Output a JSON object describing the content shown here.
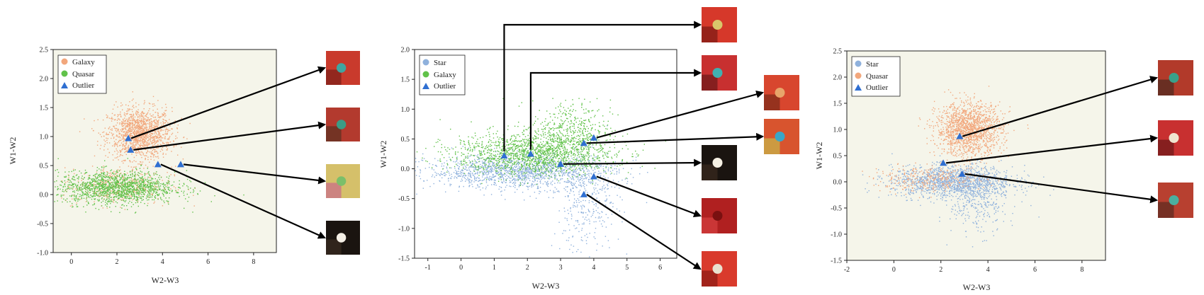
{
  "colors": {
    "Galaxy": "#f2a77c",
    "Quasar": "#f2a77c",
    "Star": "#8fb1dc",
    "GalaxyGreen": "#61c24a",
    "QuasarGreen": "#61c24a",
    "Outlier": "#2f6fd1",
    "plot_bg": "#f5f5ea"
  },
  "chart_data": [
    {
      "type": "scatter",
      "xlabel": "W2-W3",
      "ylabel": "W1-W2",
      "xlim": [
        -0.8,
        9
      ],
      "ylim": [
        -1.0,
        2.5
      ],
      "xticks": [
        0,
        2,
        4,
        6,
        8
      ],
      "yticks": [
        -1.0,
        -0.5,
        0.0,
        0.5,
        1.0,
        1.5,
        2.0,
        2.5
      ],
      "legend": [
        "Galaxy",
        "Quasar",
        "Outlier"
      ],
      "legend_colors": [
        "#f2a77c",
        "#61c24a",
        "#2f6fd1"
      ],
      "clusters": [
        {
          "series": "Galaxy",
          "color": "#f2a77c",
          "cx": 3.0,
          "cy": 1.05,
          "sx": 0.7,
          "sy": 0.22,
          "n": 1400
        },
        {
          "series": "Galaxy",
          "color": "#f2a77c",
          "cx": 2.0,
          "cy": 0.15,
          "sx": 1.2,
          "sy": 0.16,
          "n": 400
        },
        {
          "series": "Quasar",
          "color": "#61c24a",
          "cx": 2.0,
          "cy": 0.12,
          "sx": 1.3,
          "sy": 0.14,
          "n": 1500
        }
      ],
      "outliers": [
        [
          2.5,
          0.97
        ],
        [
          2.6,
          0.77
        ],
        [
          3.8,
          0.52
        ],
        [
          4.8,
          0.52
        ]
      ]
    },
    {
      "type": "scatter",
      "xlabel": "W2-W3",
      "ylabel": "W1-W2",
      "xlim": [
        -1.4,
        6.5
      ],
      "ylim": [
        -1.5,
        2.0
      ],
      "xticks": [
        -1,
        0,
        1,
        2,
        3,
        4,
        5,
        6
      ],
      "yticks": [
        -1.5,
        -1.0,
        -0.5,
        0.0,
        0.5,
        1.0,
        1.5,
        2.0
      ],
      "legend": [
        "Star",
        "Galaxy",
        "Outlier"
      ],
      "legend_colors": [
        "#8fb1dc",
        "#61c24a",
        "#2f6fd1"
      ],
      "clusters": [
        {
          "series": "Star",
          "color": "#8fb1dc",
          "cx": 1.8,
          "cy": -0.05,
          "sx": 1.4,
          "sy": 0.14,
          "n": 1500
        },
        {
          "series": "Star",
          "color": "#8fb1dc",
          "cx": 3.8,
          "cy": -0.6,
          "sx": 0.5,
          "sy": 0.4,
          "n": 300
        },
        {
          "series": "Galaxy",
          "color": "#61c24a",
          "cx": 2.2,
          "cy": 0.25,
          "sx": 1.2,
          "sy": 0.18,
          "n": 1600
        },
        {
          "series": "Galaxy",
          "color": "#61c24a",
          "cx": 3.3,
          "cy": 0.65,
          "sx": 0.6,
          "sy": 0.25,
          "n": 400
        }
      ],
      "outliers": [
        [
          1.3,
          0.22
        ],
        [
          2.1,
          0.25
        ],
        [
          3.0,
          0.08
        ],
        [
          3.7,
          0.43
        ],
        [
          4.0,
          0.52
        ],
        [
          4.0,
          -0.13
        ],
        [
          3.7,
          -0.43
        ]
      ]
    },
    {
      "type": "scatter",
      "xlabel": "W2-W3",
      "ylabel": "W1-W2",
      "xlim": [
        -2,
        9
      ],
      "ylim": [
        -1.5,
        2.5
      ],
      "xticks": [
        -2,
        0,
        2,
        4,
        6,
        8
      ],
      "yticks": [
        -1.5,
        -1.0,
        -0.5,
        0.0,
        0.5,
        1.0,
        1.5,
        2.0,
        2.5
      ],
      "legend": [
        "Star",
        "Quasar",
        "Outlier"
      ],
      "legend_colors": [
        "#8fb1dc",
        "#f2a77c",
        "#2f6fd1"
      ],
      "clusters": [
        {
          "series": "Star",
          "color": "#8fb1dc",
          "cx": 2.5,
          "cy": 0.0,
          "sx": 1.3,
          "sy": 0.15,
          "n": 1400
        },
        {
          "series": "Star",
          "color": "#8fb1dc",
          "cx": 3.6,
          "cy": -0.4,
          "sx": 0.6,
          "sy": 0.3,
          "n": 300
        },
        {
          "series": "Quasar",
          "color": "#f2a77c",
          "cx": 3.2,
          "cy": 1.0,
          "sx": 0.7,
          "sy": 0.25,
          "n": 1500
        },
        {
          "series": "Quasar",
          "color": "#f2a77c",
          "cx": 1.5,
          "cy": 0.05,
          "sx": 1.2,
          "sy": 0.12,
          "n": 300
        }
      ],
      "outliers": [
        [
          2.8,
          0.87
        ],
        [
          2.1,
          0.36
        ],
        [
          2.9,
          0.15
        ]
      ]
    }
  ],
  "thumbnails": [
    {
      "id": "p1-t1",
      "colors": [
        "#c93a2c",
        "#3fa6a1",
        "#7a1f18"
      ]
    },
    {
      "id": "p1-t2",
      "colors": [
        "#b33a2e",
        "#3b9c85",
        "#5a3021"
      ]
    },
    {
      "id": "p1-t3",
      "colors": [
        "#d5c06a",
        "#7bbf6a",
        "#c76a8a"
      ]
    },
    {
      "id": "p1-t4",
      "colors": [
        "#1a1410",
        "#f4efe6",
        "#3a2b22"
      ]
    },
    {
      "id": "p2-t1",
      "colors": [
        "#d6382a",
        "#d9c66a",
        "#7a1a14"
      ]
    },
    {
      "id": "p2-t2",
      "colors": [
        "#c83030",
        "#40b0b0",
        "#6a1818"
      ]
    },
    {
      "id": "p2-t3",
      "colors": [
        "#1a1410",
        "#f6f1e4",
        "#3a2a20"
      ]
    },
    {
      "id": "p2-t4",
      "colors": [
        "#b02020",
        "#7a1010",
        "#d64040"
      ]
    },
    {
      "id": "p2-t5",
      "colors": [
        "#d93a2c",
        "#e9e2d0",
        "#8a1a14"
      ]
    },
    {
      "id": "p2-t6",
      "colors": [
        "#d8462e",
        "#e8a56a",
        "#7a2a18"
      ]
    },
    {
      "id": "p2-t7",
      "colors": [
        "#d8542e",
        "#3aa6c8",
        "#c8b84a"
      ]
    },
    {
      "id": "p3-t1",
      "colors": [
        "#b23a2a",
        "#3aa08a",
        "#4a2a20"
      ]
    },
    {
      "id": "p3-t2",
      "colors": [
        "#c83030",
        "#f0e6d0",
        "#6a1818"
      ]
    },
    {
      "id": "p3-t3",
      "colors": [
        "#b84030",
        "#4ab0a0",
        "#5a2a20"
      ]
    }
  ]
}
